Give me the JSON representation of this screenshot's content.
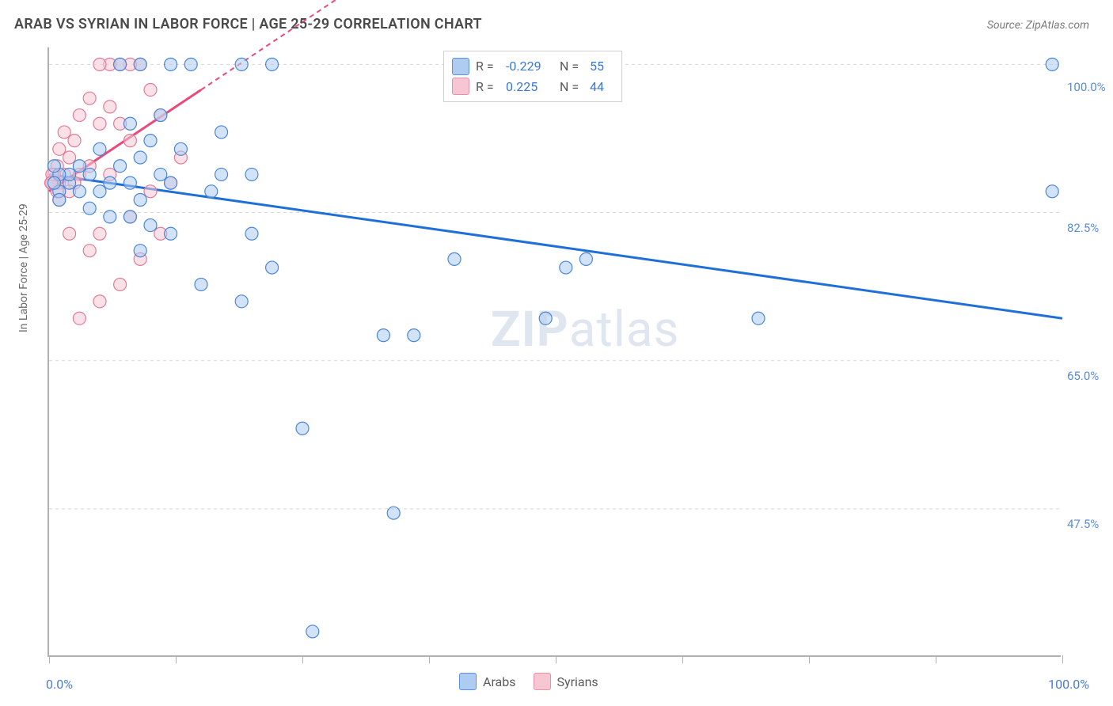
{
  "title": "ARAB VS SYRIAN IN LABOR FORCE | AGE 25-29 CORRELATION CHART",
  "source": "Source: ZipAtlas.com",
  "ylabel": "In Labor Force | Age 25-29",
  "watermark_a": "ZIP",
  "watermark_b": "atlas",
  "chart": {
    "type": "scatter",
    "background_color": "#ffffff",
    "grid_color": "#d8d8d8",
    "axis_color": "#b0b0b0",
    "series_colors": {
      "arabs": "#aeccf1",
      "syrians": "#f6c7d3"
    },
    "series_stroke": {
      "arabs": "#4a86d8",
      "syrians": "#e07c98"
    },
    "trend_colors": {
      "arabs": "#1f6fd8",
      "syrians": "#e84a7a"
    },
    "label_color": "#5b8dd6",
    "xlim": [
      0,
      100
    ],
    "ylim": [
      30,
      102
    ],
    "ytick_labels": [
      "47.5%",
      "65.0%",
      "82.5%",
      "100.0%"
    ],
    "ytick_values": [
      47.5,
      65.0,
      82.5,
      100.0
    ],
    "xtick_values": [
      0,
      12.5,
      25,
      37.5,
      50,
      62.5,
      75,
      87.5,
      100
    ],
    "x_left_label": "0.0%",
    "x_right_label": "100.0%",
    "marker_radius": 8,
    "legend_top": {
      "rows": [
        {
          "color": "blue",
          "r_label": "R =",
          "r_value": "-0.229",
          "n_label": "N =",
          "n_value": "55"
        },
        {
          "color": "pink",
          "r_label": "R =",
          "r_value": "0.225",
          "n_label": "N =",
          "n_value": "44"
        }
      ]
    },
    "legend_bottom": [
      {
        "color": "blue",
        "label": "Arabs"
      },
      {
        "color": "pink",
        "label": "Syrians"
      }
    ],
    "trend_lines": {
      "arabs": {
        "x1": 0,
        "y1": 87,
        "x2_solid": 100,
        "y2_solid": 70,
        "x2_dash": 100,
        "y2_dash": 70
      },
      "syrians": {
        "x1": 0,
        "y1": 85,
        "x2_solid": 15,
        "y2_solid": 97,
        "x2_dash": 30,
        "y2_dash": 109
      }
    },
    "points_arabs": [
      {
        "x": 99,
        "y": 100
      },
      {
        "x": 99,
        "y": 85
      },
      {
        "x": 70,
        "y": 70
      },
      {
        "x": 53,
        "y": 77
      },
      {
        "x": 51,
        "y": 76
      },
      {
        "x": 49,
        "y": 70
      },
      {
        "x": 40,
        "y": 77
      },
      {
        "x": 36,
        "y": 68
      },
      {
        "x": 34,
        "y": 47
      },
      {
        "x": 33,
        "y": 68
      },
      {
        "x": 26,
        "y": 33
      },
      {
        "x": 25,
        "y": 57
      },
      {
        "x": 22,
        "y": 100
      },
      {
        "x": 22,
        "y": 76
      },
      {
        "x": 20,
        "y": 87
      },
      {
        "x": 20,
        "y": 80
      },
      {
        "x": 19,
        "y": 100
      },
      {
        "x": 19,
        "y": 72
      },
      {
        "x": 17,
        "y": 92
      },
      {
        "x": 17,
        "y": 87
      },
      {
        "x": 16,
        "y": 85
      },
      {
        "x": 15,
        "y": 74
      },
      {
        "x": 14,
        "y": 100
      },
      {
        "x": 13,
        "y": 90
      },
      {
        "x": 12,
        "y": 100
      },
      {
        "x": 12,
        "y": 86
      },
      {
        "x": 12,
        "y": 80
      },
      {
        "x": 11,
        "y": 94
      },
      {
        "x": 11,
        "y": 87
      },
      {
        "x": 10,
        "y": 91
      },
      {
        "x": 10,
        "y": 81
      },
      {
        "x": 9,
        "y": 100
      },
      {
        "x": 9,
        "y": 89
      },
      {
        "x": 9,
        "y": 84
      },
      {
        "x": 9,
        "y": 78
      },
      {
        "x": 8,
        "y": 93
      },
      {
        "x": 8,
        "y": 86
      },
      {
        "x": 8,
        "y": 82
      },
      {
        "x": 7,
        "y": 100
      },
      {
        "x": 7,
        "y": 88
      },
      {
        "x": 6,
        "y": 86
      },
      {
        "x": 6,
        "y": 82
      },
      {
        "x": 5,
        "y": 90
      },
      {
        "x": 5,
        "y": 85
      },
      {
        "x": 4,
        "y": 87
      },
      {
        "x": 4,
        "y": 83
      },
      {
        "x": 3,
        "y": 88
      },
      {
        "x": 3,
        "y": 85
      },
      {
        "x": 2,
        "y": 86
      },
      {
        "x": 2,
        "y": 87
      },
      {
        "x": 1,
        "y": 87
      },
      {
        "x": 1,
        "y": 85
      },
      {
        "x": 1,
        "y": 84
      },
      {
        "x": 0.5,
        "y": 86
      },
      {
        "x": 0.5,
        "y": 88
      }
    ],
    "points_syrians": [
      {
        "x": 13,
        "y": 89
      },
      {
        "x": 12,
        "y": 86
      },
      {
        "x": 11,
        "y": 94
      },
      {
        "x": 11,
        "y": 80
      },
      {
        "x": 10,
        "y": 97
      },
      {
        "x": 10,
        "y": 85
      },
      {
        "x": 9,
        "y": 100
      },
      {
        "x": 9,
        "y": 77
      },
      {
        "x": 8,
        "y": 100
      },
      {
        "x": 8,
        "y": 91
      },
      {
        "x": 8,
        "y": 82
      },
      {
        "x": 7,
        "y": 100
      },
      {
        "x": 7,
        "y": 93
      },
      {
        "x": 7,
        "y": 74
      },
      {
        "x": 6,
        "y": 100
      },
      {
        "x": 6,
        "y": 95
      },
      {
        "x": 6,
        "y": 87
      },
      {
        "x": 5,
        "y": 100
      },
      {
        "x": 5,
        "y": 93
      },
      {
        "x": 5,
        "y": 80
      },
      {
        "x": 5,
        "y": 72
      },
      {
        "x": 4,
        "y": 96
      },
      {
        "x": 4,
        "y": 88
      },
      {
        "x": 4,
        "y": 78
      },
      {
        "x": 3,
        "y": 94
      },
      {
        "x": 3,
        "y": 87
      },
      {
        "x": 3,
        "y": 70
      },
      {
        "x": 2.5,
        "y": 91
      },
      {
        "x": 2.5,
        "y": 86
      },
      {
        "x": 2,
        "y": 89
      },
      {
        "x": 2,
        "y": 85
      },
      {
        "x": 2,
        "y": 80
      },
      {
        "x": 1.5,
        "y": 92
      },
      {
        "x": 1.5,
        "y": 87
      },
      {
        "x": 1,
        "y": 90
      },
      {
        "x": 1,
        "y": 86
      },
      {
        "x": 1,
        "y": 84
      },
      {
        "x": 0.8,
        "y": 88
      },
      {
        "x": 0.8,
        "y": 85
      },
      {
        "x": 0.5,
        "y": 87
      },
      {
        "x": 0.5,
        "y": 86
      },
      {
        "x": 0.3,
        "y": 86
      },
      {
        "x": 0.3,
        "y": 87
      },
      {
        "x": 0.2,
        "y": 86
      }
    ]
  }
}
